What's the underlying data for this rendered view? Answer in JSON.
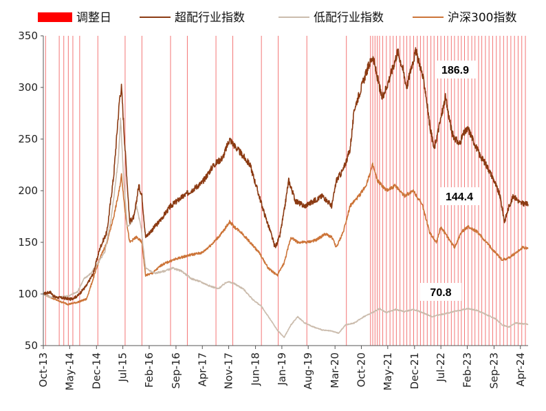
{
  "chart_data": {
    "type": "line",
    "title": "",
    "xlabel": "",
    "ylabel": "",
    "ylim": [
      50,
      350
    ],
    "yticks": [
      "50",
      "100",
      "150",
      "200",
      "250",
      "300",
      "350"
    ],
    "x_start": 2013.75,
    "x_end": 2024.42,
    "xticks": [
      {
        "label": "Oct-13",
        "t": 2013.75
      },
      {
        "label": "May-14",
        "t": 2014.33
      },
      {
        "label": "Dec-14",
        "t": 2014.92
      },
      {
        "label": "Jul-15",
        "t": 2015.5
      },
      {
        "label": "Feb-16",
        "t": 2016.08
      },
      {
        "label": "Sep-16",
        "t": 2016.67
      },
      {
        "label": "Apr-17",
        "t": 2017.25
      },
      {
        "label": "Nov-17",
        "t": 2017.83
      },
      {
        "label": "Jun-18",
        "t": 2018.42
      },
      {
        "label": "Jan-19",
        "t": 2019.0
      },
      {
        "label": "Aug-19",
        "t": 2019.58
      },
      {
        "label": "Mar-20",
        "t": 2020.17
      },
      {
        "label": "Oct-20",
        "t": 2020.75
      },
      {
        "label": "May-21",
        "t": 2021.33
      },
      {
        "label": "Dec-21",
        "t": 2021.92
      },
      {
        "label": "Jul-22",
        "t": 2022.5
      },
      {
        "label": "Feb-23",
        "t": 2023.08
      },
      {
        "label": "Sep-23",
        "t": 2023.67
      },
      {
        "label": "Apr-24",
        "t": 2024.25
      }
    ],
    "rebalance_dates": [
      2013.8,
      2014.1,
      2014.2,
      2014.3,
      2014.4,
      2014.55,
      2014.95,
      2015.55,
      2015.92,
      2016.55,
      2016.92,
      2017.55,
      2017.92,
      2018.55,
      2018.92,
      2019.55,
      2020.42,
      2020.95,
      2021.0,
      2021.05,
      2021.1,
      2021.15,
      2021.22,
      2021.3,
      2021.38,
      2021.45,
      2021.52,
      2021.6,
      2021.68,
      2021.75,
      2021.82,
      2021.9,
      2021.98,
      2022.05,
      2022.12,
      2022.2,
      2022.28,
      2022.35,
      2022.43,
      2022.5,
      2022.58,
      2022.65,
      2022.73,
      2022.8,
      2022.88,
      2022.95,
      2023.02,
      2023.1,
      2023.18,
      2023.25,
      2023.33,
      2023.4,
      2023.48,
      2023.56,
      2023.64,
      2023.72,
      2023.8,
      2023.88,
      2023.96,
      2024.04,
      2024.12,
      2024.2,
      2024.28,
      2024.36
    ],
    "legend_items": [
      {
        "name": "调整日",
        "color": "#ff0000",
        "kind": "bar"
      },
      {
        "name": "超配行业指数",
        "color": "#8b3a12",
        "kind": "line"
      },
      {
        "name": "低配行业指数",
        "color": "#cbbcad",
        "kind": "line"
      },
      {
        "name": "沪深300指数",
        "color": "#cc7438",
        "kind": "line"
      }
    ],
    "series": [
      {
        "name": "超配行业指数",
        "color": "#8b3a12",
        "end_label": "186.9",
        "points": [
          [
            2013.75,
            100
          ],
          [
            2013.9,
            102
          ],
          [
            2014.0,
            97
          ],
          [
            2014.2,
            96
          ],
          [
            2014.35,
            95
          ],
          [
            2014.5,
            98
          ],
          [
            2014.7,
            108
          ],
          [
            2014.85,
            120
          ],
          [
            2015.0,
            145
          ],
          [
            2015.15,
            160
          ],
          [
            2015.3,
            215
          ],
          [
            2015.43,
            290
          ],
          [
            2015.47,
            300
          ],
          [
            2015.55,
            240
          ],
          [
            2015.65,
            170
          ],
          [
            2015.75,
            175
          ],
          [
            2015.85,
            205
          ],
          [
            2015.92,
            195
          ],
          [
            2016.0,
            155
          ],
          [
            2016.1,
            160
          ],
          [
            2016.3,
            170
          ],
          [
            2016.55,
            185
          ],
          [
            2016.75,
            192
          ],
          [
            2017.0,
            200
          ],
          [
            2017.25,
            208
          ],
          [
            2017.5,
            225
          ],
          [
            2017.7,
            232
          ],
          [
            2017.85,
            250
          ],
          [
            2017.95,
            244
          ],
          [
            2018.1,
            236
          ],
          [
            2018.3,
            225
          ],
          [
            2018.5,
            195
          ],
          [
            2018.6,
            180
          ],
          [
            2018.75,
            160
          ],
          [
            2018.85,
            145
          ],
          [
            2018.95,
            155
          ],
          [
            2019.05,
            180
          ],
          [
            2019.15,
            210
          ],
          [
            2019.3,
            190
          ],
          [
            2019.5,
            185
          ],
          [
            2019.7,
            190
          ],
          [
            2019.9,
            195
          ],
          [
            2020.1,
            185
          ],
          [
            2020.2,
            210
          ],
          [
            2020.35,
            220
          ],
          [
            2020.5,
            240
          ],
          [
            2020.6,
            280
          ],
          [
            2020.75,
            300
          ],
          [
            2020.9,
            320
          ],
          [
            2021.0,
            330
          ],
          [
            2021.1,
            310
          ],
          [
            2021.2,
            290
          ],
          [
            2021.3,
            300
          ],
          [
            2021.45,
            320
          ],
          [
            2021.55,
            335
          ],
          [
            2021.65,
            320
          ],
          [
            2021.75,
            300
          ],
          [
            2021.85,
            320
          ],
          [
            2021.95,
            335
          ],
          [
            2022.05,
            320
          ],
          [
            2022.15,
            300
          ],
          [
            2022.25,
            265
          ],
          [
            2022.35,
            240
          ],
          [
            2022.5,
            270
          ],
          [
            2022.6,
            290
          ],
          [
            2022.75,
            255
          ],
          [
            2022.9,
            245
          ],
          [
            2023.0,
            255
          ],
          [
            2023.1,
            260
          ],
          [
            2023.2,
            250
          ],
          [
            2023.35,
            235
          ],
          [
            2023.5,
            225
          ],
          [
            2023.65,
            212
          ],
          [
            2023.8,
            195
          ],
          [
            2023.9,
            170
          ],
          [
            2024.0,
            185
          ],
          [
            2024.1,
            195
          ],
          [
            2024.25,
            188
          ],
          [
            2024.42,
            186.9
          ]
        ]
      },
      {
        "name": "低配行业指数",
        "color": "#cbbcad",
        "end_label": "70.8",
        "points": [
          [
            2013.75,
            100
          ],
          [
            2013.9,
            97
          ],
          [
            2014.1,
            97
          ],
          [
            2014.3,
            98
          ],
          [
            2014.5,
            102
          ],
          [
            2014.65,
            115
          ],
          [
            2014.8,
            120
          ],
          [
            2014.95,
            130
          ],
          [
            2015.1,
            140
          ],
          [
            2015.25,
            175
          ],
          [
            2015.4,
            230
          ],
          [
            2015.45,
            270
          ],
          [
            2015.52,
            210
          ],
          [
            2015.6,
            165
          ],
          [
            2015.7,
            170
          ],
          [
            2015.8,
            185
          ],
          [
            2015.9,
            165
          ],
          [
            2016.0,
            125
          ],
          [
            2016.2,
            120
          ],
          [
            2016.4,
            122
          ],
          [
            2016.6,
            125
          ],
          [
            2016.8,
            122
          ],
          [
            2017.0,
            115
          ],
          [
            2017.2,
            112
          ],
          [
            2017.4,
            108
          ],
          [
            2017.6,
            105
          ],
          [
            2017.8,
            112
          ],
          [
            2017.95,
            110
          ],
          [
            2018.15,
            105
          ],
          [
            2018.35,
            95
          ],
          [
            2018.55,
            88
          ],
          [
            2018.75,
            75
          ],
          [
            2018.9,
            65
          ],
          [
            2019.05,
            58
          ],
          [
            2019.2,
            70
          ],
          [
            2019.35,
            78
          ],
          [
            2019.5,
            72
          ],
          [
            2019.7,
            68
          ],
          [
            2019.9,
            65
          ],
          [
            2020.1,
            64
          ],
          [
            2020.25,
            62
          ],
          [
            2020.4,
            70
          ],
          [
            2020.6,
            72
          ],
          [
            2020.8,
            78
          ],
          [
            2021.0,
            82
          ],
          [
            2021.15,
            86
          ],
          [
            2021.3,
            82
          ],
          [
            2021.5,
            85
          ],
          [
            2021.7,
            83
          ],
          [
            2021.9,
            85
          ],
          [
            2022.1,
            82
          ],
          [
            2022.3,
            78
          ],
          [
            2022.5,
            80
          ],
          [
            2022.7,
            82
          ],
          [
            2022.9,
            84
          ],
          [
            2023.1,
            86
          ],
          [
            2023.3,
            84
          ],
          [
            2023.5,
            80
          ],
          [
            2023.7,
            76
          ],
          [
            2023.85,
            70
          ],
          [
            2024.0,
            68
          ],
          [
            2024.15,
            72
          ],
          [
            2024.3,
            71
          ],
          [
            2024.42,
            70.8
          ]
        ]
      },
      {
        "name": "沪深300指数",
        "color": "#cc7438",
        "end_label": "144.4",
        "points": [
          [
            2013.75,
            100
          ],
          [
            2013.9,
            97
          ],
          [
            2014.1,
            93
          ],
          [
            2014.3,
            90
          ],
          [
            2014.5,
            92
          ],
          [
            2014.7,
            95
          ],
          [
            2014.85,
            115
          ],
          [
            2015.0,
            135
          ],
          [
            2015.15,
            150
          ],
          [
            2015.3,
            175
          ],
          [
            2015.42,
            200
          ],
          [
            2015.47,
            215
          ],
          [
            2015.55,
            180
          ],
          [
            2015.65,
            150
          ],
          [
            2015.8,
            155
          ],
          [
            2015.92,
            150
          ],
          [
            2016.0,
            118
          ],
          [
            2016.15,
            120
          ],
          [
            2016.35,
            128
          ],
          [
            2016.55,
            132
          ],
          [
            2016.75,
            135
          ],
          [
            2017.0,
            138
          ],
          [
            2017.25,
            140
          ],
          [
            2017.5,
            150
          ],
          [
            2017.7,
            160
          ],
          [
            2017.85,
            170
          ],
          [
            2017.95,
            165
          ],
          [
            2018.1,
            160
          ],
          [
            2018.3,
            150
          ],
          [
            2018.5,
            140
          ],
          [
            2018.7,
            125
          ],
          [
            2018.9,
            118
          ],
          [
            2019.05,
            130
          ],
          [
            2019.2,
            155
          ],
          [
            2019.35,
            150
          ],
          [
            2019.55,
            150
          ],
          [
            2019.75,
            152
          ],
          [
            2019.95,
            158
          ],
          [
            2020.1,
            155
          ],
          [
            2020.2,
            145
          ],
          [
            2020.35,
            160
          ],
          [
            2020.5,
            185
          ],
          [
            2020.7,
            195
          ],
          [
            2020.85,
            205
          ],
          [
            2021.0,
            225
          ],
          [
            2021.1,
            210
          ],
          [
            2021.3,
            200
          ],
          [
            2021.5,
            205
          ],
          [
            2021.7,
            195
          ],
          [
            2021.9,
            200
          ],
          [
            2022.1,
            185
          ],
          [
            2022.25,
            160
          ],
          [
            2022.4,
            150
          ],
          [
            2022.5,
            165
          ],
          [
            2022.65,
            155
          ],
          [
            2022.8,
            145
          ],
          [
            2022.95,
            160
          ],
          [
            2023.1,
            165
          ],
          [
            2023.3,
            160
          ],
          [
            2023.5,
            150
          ],
          [
            2023.7,
            140
          ],
          [
            2023.85,
            133
          ],
          [
            2024.0,
            135
          ],
          [
            2024.15,
            140
          ],
          [
            2024.3,
            145
          ],
          [
            2024.42,
            144.4
          ]
        ]
      }
    ]
  }
}
